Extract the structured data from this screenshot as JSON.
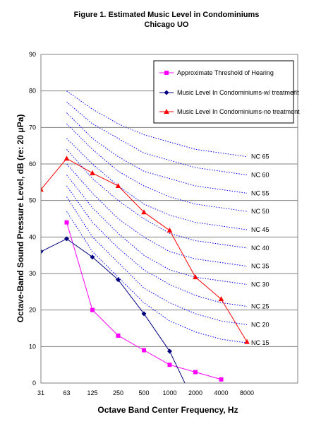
{
  "title_line1": "Figure 1. Estimated Music Level in Condominiums",
  "title_line2": "Chicago UO",
  "chart_data": {
    "type": "line",
    "title": "Figure 1. Estimated Music Level in Condominiums",
    "subtitle": "Chicago UO",
    "xlabel": "Octave Band Center Frequency, Hz",
    "ylabel": "Octave-Band Sound Pressure Level, dB (re: 20 μPa)",
    "x_categories": [
      "31",
      "63",
      "125",
      "250",
      "500",
      "1000",
      "2000",
      "4000",
      "8000"
    ],
    "ylim": [
      0,
      90
    ],
    "yticks": [
      0,
      10,
      20,
      30,
      40,
      50,
      60,
      70,
      80,
      90
    ],
    "grid": "horizontal",
    "legend_position": "top-right",
    "series": [
      {
        "name": "Approximate Threshold of Hearing",
        "color": "#ff00ff",
        "marker": "square",
        "x": [
          "63",
          "125",
          "250",
          "500",
          "1000",
          "2000",
          "4000"
        ],
        "values": [
          44,
          20,
          13,
          9,
          5,
          3,
          1
        ]
      },
      {
        "name": "Music Level In Condominiums-w/ treatment",
        "color": "#000080",
        "marker": "diamond",
        "x": [
          "31",
          "63",
          "125",
          "250",
          "500",
          "1000",
          "2000"
        ],
        "values": [
          36,
          39.5,
          34.5,
          28.3,
          19,
          8.7,
          -6
        ]
      },
      {
        "name": "Music Level In Condominiums-no treatment",
        "color": "#ff0000",
        "marker": "triangle",
        "x": [
          "31",
          "63",
          "125",
          "250",
          "500",
          "1000",
          "2000",
          "4000",
          "8000"
        ],
        "values": [
          53,
          61.5,
          57.5,
          54,
          46.8,
          41.8,
          29,
          23,
          11.3
        ]
      }
    ],
    "nc_curves": {
      "color": "#0000ff",
      "style": "dotted",
      "x": [
        "63",
        "125",
        "250",
        "500",
        "1000",
        "2000",
        "4000",
        "8000"
      ],
      "curves": [
        {
          "name": "NC 15",
          "values": [
            47,
            36,
            29,
            22,
            17,
            14,
            12,
            11
          ]
        },
        {
          "name": "NC 20",
          "values": [
            51,
            40,
            33,
            26,
            22,
            19,
            17,
            16
          ]
        },
        {
          "name": "NC 25",
          "values": [
            54,
            44,
            37,
            31,
            27,
            24,
            22,
            21
          ]
        },
        {
          "name": "NC 30",
          "values": [
            57,
            48,
            41,
            35,
            31,
            29,
            28,
            27
          ]
        },
        {
          "name": "NC 35",
          "values": [
            60,
            52,
            45,
            40,
            36,
            34,
            33,
            32
          ]
        },
        {
          "name": "NC 40",
          "values": [
            64,
            56,
            50,
            45,
            41,
            39,
            38,
            37
          ]
        },
        {
          "name": "NC 45",
          "values": [
            67,
            60,
            54,
            49,
            46,
            44,
            43,
            42
          ]
        },
        {
          "name": "NC 50",
          "values": [
            71,
            64,
            58,
            54,
            51,
            49,
            48,
            47
          ]
        },
        {
          "name": "NC 55",
          "values": [
            74,
            67,
            62,
            58,
            56,
            54,
            53,
            52
          ]
        },
        {
          "name": "NC 60",
          "values": [
            77,
            71,
            67,
            63,
            61,
            59,
            58,
            57
          ]
        },
        {
          "name": "NC 65",
          "values": [
            80,
            75,
            71,
            68,
            66,
            64,
            63,
            62
          ]
        }
      ]
    }
  }
}
